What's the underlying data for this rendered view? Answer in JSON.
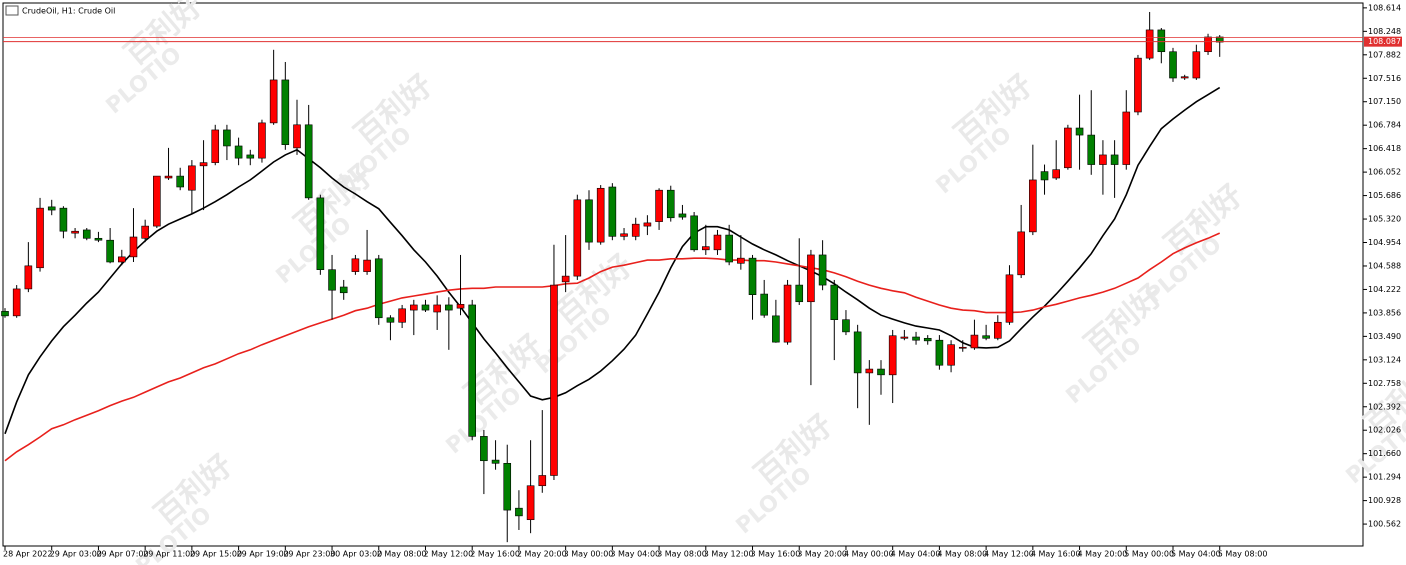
{
  "chart_data": {
    "type": "candlestick",
    "title": "CrudeOil, H1:  Crude Oil",
    "categories": [
      "28 Apr 2022",
      null,
      null,
      null,
      "29 Apr 03:00",
      null,
      null,
      null,
      "29 Apr 07:00",
      null,
      null,
      null,
      "29 Apr 11:00",
      null,
      null,
      null,
      "29 Apr 15:00",
      null,
      null,
      null,
      "29 Apr 19:00",
      null,
      null,
      null,
      "29 Apr 23:00",
      null,
      null,
      null,
      "30 Apr 03:00",
      null,
      null,
      null,
      "2 May 08:00",
      null,
      null,
      null,
      "2 May 12:00",
      null,
      null,
      null,
      "2 May 16:00",
      null,
      null,
      null,
      "2 May 20:00",
      null,
      null,
      null,
      "3 May 00:00",
      null,
      null,
      null,
      "3 May 04:00",
      null,
      null,
      null,
      "3 May 08:00",
      null,
      null,
      null,
      "3 May 12:00",
      null,
      null,
      null,
      "3 May 16:00",
      null,
      null,
      null,
      "3 May 20:00",
      null,
      null,
      null,
      "4 May 00:00",
      null,
      null,
      null,
      "4 May 04:00",
      null,
      null,
      null,
      "4 May 08:00",
      null,
      null,
      null,
      "4 May 12:00",
      null,
      null,
      null,
      "4 May 16:00",
      null,
      null,
      null,
      "4 May 20:00",
      null,
      null,
      null,
      "5 May 00:00",
      null,
      null,
      null,
      "5 May 04:00",
      null,
      null,
      null,
      "5 May 08:00"
    ],
    "open": [
      103.88,
      103.81,
      104.23,
      104.56,
      105.51,
      105.49,
      105.1,
      105.15,
      105.02,
      104.99,
      104.65,
      104.73,
      105.02,
      105.21,
      105.96,
      105.99,
      105.77,
      106.15,
      106.2,
      106.71,
      106.46,
      106.32,
      106.27,
      106.82,
      107.49,
      106.43,
      106.79,
      105.65,
      104.53,
      104.26,
      104.5,
      104.5,
      104.7,
      103.78,
      103.71,
      103.9,
      103.98,
      103.87,
      103.98,
      103.93,
      103.98,
      101.93,
      101.56,
      101.51,
      100.81,
      100.63,
      101.16,
      101.32,
      104.34,
      104.43,
      105.62,
      104.96,
      105.82,
      105.05,
      105.05,
      105.21,
      105.28,
      105.77,
      105.4,
      105.37,
      104.84,
      104.84,
      105.07,
      104.63,
      104.71,
      104.15,
      103.81,
      103.4,
      104.29,
      104.03,
      104.76,
      104.29,
      103.75,
      103.56,
      102.92,
      102.98,
      102.89,
      103.46,
      103.48,
      103.46,
      103.43,
      103.04,
      103.31,
      103.31,
      103.5,
      103.46,
      103.71,
      104.45,
      105.12,
      106.06,
      105.96,
      106.12,
      106.74,
      106.63,
      106.17,
      106.32,
      106.17,
      106.99,
      107.83,
      108.27,
      107.93,
      107.52,
      107.52,
      107.93,
      108.16
    ],
    "high": [
      103.93,
      104.29,
      104.96,
      105.65,
      105.62,
      105.52,
      105.18,
      105.18,
      105.12,
      105.18,
      104.84,
      105.49,
      105.31,
      105.99,
      106.43,
      106.12,
      106.24,
      106.55,
      106.79,
      106.79,
      106.59,
      106.4,
      106.87,
      107.96,
      107.77,
      107.18,
      107.1,
      105.7,
      104.76,
      104.37,
      104.76,
      105.15,
      104.76,
      103.82,
      103.98,
      104.06,
      104.06,
      104.13,
      104.1,
      104.76,
      104.06,
      102.03,
      101.87,
      101.8,
      101.09,
      101.87,
      102.34,
      104.92,
      105.07,
      105.7,
      105.77,
      105.85,
      105.88,
      105.18,
      105.34,
      105.38,
      105.8,
      105.84,
      105.54,
      105.43,
      105.23,
      105.15,
      105.23,
      105.07,
      104.76,
      104.37,
      104.06,
      104.37,
      105.02,
      104.84,
      104.99,
      104.37,
      103.9,
      103.67,
      103.12,
      103.12,
      103.59,
      103.59,
      103.56,
      103.51,
      103.51,
      103.43,
      103.43,
      103.75,
      103.67,
      103.82,
      104.6,
      105.54,
      106.48,
      106.17,
      106.55,
      106.79,
      107.26,
      107.33,
      106.55,
      106.55,
      107.33,
      107.88,
      108.55,
      108.3,
      107.99,
      107.57,
      108.04,
      108.21,
      108.19
    ],
    "low": [
      103.78,
      103.78,
      104.18,
      104.5,
      105.38,
      105.02,
      105.02,
      104.99,
      104.96,
      104.63,
      104.6,
      104.65,
      104.96,
      105.18,
      105.93,
      105.77,
      105.4,
      105.46,
      106.16,
      106.24,
      106.16,
      106.16,
      106.2,
      106.79,
      106.4,
      106.32,
      105.62,
      104.45,
      103.75,
      104.06,
      104.45,
      104.45,
      103.67,
      103.43,
      103.62,
      103.51,
      103.87,
      103.59,
      103.28,
      103.82,
      101.87,
      101.03,
      101.41,
      100.28,
      100.47,
      100.42,
      101.05,
      101.25,
      104.18,
      104.37,
      104.84,
      104.92,
      104.99,
      104.99,
      104.99,
      105.07,
      105.15,
      105.28,
      105.31,
      104.81,
      104.76,
      104.76,
      104.6,
      104.53,
      103.75,
      103.78,
      103.39,
      103.36,
      103.98,
      102.73,
      104.21,
      103.12,
      103.51,
      102.37,
      102.11,
      102.58,
      102.45,
      103.43,
      103.36,
      103.36,
      102.97,
      102.93,
      103.25,
      103.28,
      103.43,
      103.43,
      103.67,
      104.4,
      105.07,
      105.7,
      105.93,
      106.09,
      106.09,
      106.01,
      105.7,
      105.65,
      106.09,
      106.94,
      107.8,
      107.75,
      107.46,
      107.49,
      107.49,
      107.88,
      107.85
    ],
    "close": [
      103.81,
      104.23,
      104.59,
      105.49,
      105.46,
      105.13,
      105.13,
      105.02,
      104.99,
      104.65,
      104.73,
      105.04,
      105.21,
      105.99,
      105.99,
      105.82,
      106.15,
      106.2,
      106.71,
      106.46,
      106.27,
      106.27,
      106.82,
      107.49,
      106.48,
      106.79,
      105.65,
      104.53,
      104.21,
      104.17,
      104.7,
      104.68,
      103.78,
      103.71,
      103.92,
      103.98,
      103.9,
      103.98,
      103.9,
      103.99,
      101.93,
      101.55,
      101.51,
      100.78,
      100.69,
      101.16,
      101.32,
      104.29,
      104.43,
      105.62,
      104.96,
      105.8,
      105.05,
      105.09,
      105.24,
      105.26,
      105.77,
      105.34,
      105.35,
      104.84,
      104.89,
      105.07,
      104.65,
      104.71,
      104.14,
      103.82,
      103.4,
      104.29,
      104.03,
      104.76,
      104.29,
      103.75,
      103.56,
      102.92,
      102.98,
      102.89,
      103.5,
      103.48,
      103.43,
      103.42,
      103.04,
      103.36,
      103.32,
      103.51,
      103.46,
      103.71,
      104.45,
      105.12,
      105.93,
      105.93,
      106.09,
      106.74,
      106.63,
      106.17,
      106.32,
      106.17,
      106.99,
      107.83,
      108.27,
      107.93,
      107.52,
      107.54,
      107.93,
      108.16,
      108.08
    ],
    "up_color": "#ff0000",
    "down_color": "#008000",
    "overlays": [
      {
        "color": "#000000",
        "values": [
          101.97,
          102.47,
          102.89,
          103.17,
          103.42,
          103.64,
          103.82,
          104.01,
          104.18,
          104.4,
          104.62,
          104.81,
          104.98,
          105.13,
          105.24,
          105.32,
          105.4,
          105.49,
          105.59,
          105.7,
          105.82,
          105.93,
          106.07,
          106.21,
          106.32,
          106.4,
          106.26,
          106.12,
          105.96,
          105.82,
          105.71,
          105.59,
          105.48,
          105.27,
          105.06,
          104.84,
          104.65,
          104.43,
          104.18,
          103.95,
          103.7,
          103.45,
          103.23,
          103.0,
          102.78,
          102.56,
          102.5,
          102.54,
          102.61,
          102.72,
          102.82,
          102.95,
          103.11,
          103.29,
          103.51,
          103.84,
          104.18,
          104.56,
          104.89,
          105.1,
          105.2,
          105.2,
          105.15,
          105.04,
          104.93,
          104.84,
          104.76,
          104.67,
          104.59,
          104.51,
          104.42,
          104.31,
          104.18,
          104.06,
          103.93,
          103.82,
          103.76,
          103.7,
          103.65,
          103.62,
          103.59,
          103.5,
          103.39,
          103.32,
          103.31,
          103.32,
          103.42,
          103.61,
          103.79,
          103.96,
          104.15,
          104.35,
          104.56,
          104.78,
          105.06,
          105.32,
          105.7,
          106.16,
          106.45,
          106.73,
          106.88,
          107.02,
          107.15,
          107.26,
          107.37
        ]
      },
      {
        "color": "#e8201c",
        "values": [
          101.55,
          101.69,
          101.8,
          101.92,
          102.05,
          102.11,
          102.19,
          102.26,
          102.33,
          102.41,
          102.48,
          102.54,
          102.62,
          102.7,
          102.78,
          102.84,
          102.92,
          103.0,
          103.06,
          103.14,
          103.22,
          103.28,
          103.36,
          103.43,
          103.5,
          103.57,
          103.64,
          103.7,
          103.76,
          103.82,
          103.89,
          103.93,
          103.99,
          104.04,
          104.09,
          104.12,
          104.15,
          104.18,
          104.21,
          104.23,
          104.24,
          104.24,
          104.26,
          104.26,
          104.26,
          104.26,
          104.26,
          104.28,
          104.31,
          104.32,
          104.4,
          104.5,
          104.57,
          104.6,
          104.64,
          104.68,
          104.68,
          104.7,
          104.7,
          104.71,
          104.71,
          104.7,
          104.68,
          104.68,
          104.67,
          104.67,
          104.65,
          104.62,
          104.59,
          104.56,
          104.53,
          104.48,
          104.42,
          104.35,
          104.29,
          104.24,
          104.2,
          104.17,
          104.1,
          104.04,
          103.98,
          103.93,
          103.9,
          103.89,
          103.86,
          103.86,
          103.86,
          103.87,
          103.9,
          103.95,
          103.99,
          104.04,
          104.09,
          104.13,
          104.18,
          104.24,
          104.32,
          104.4,
          104.53,
          104.65,
          104.78,
          104.87,
          104.95,
          105.02,
          105.1
        ]
      }
    ],
    "current_price": 108.087,
    "current_price_color": "#e03030",
    "ylim": [
      100.22,
      108.69
    ],
    "yticks": [
      108.614,
      108.248,
      107.882,
      107.516,
      {
        "value": 107.15,
        "label": "107.150"
      },
      106.784,
      106.418,
      106.052,
      105.686,
      {
        "value": 105.32,
        "label": "105.320"
      },
      104.954,
      104.588,
      104.222,
      103.856,
      {
        "value": 103.49,
        "label": "103.490"
      },
      103.124,
      102.758,
      102.392,
      102.026,
      {
        "value": 101.66,
        "label": "101.660"
      },
      101.294,
      100.928,
      100.562
    ]
  },
  "watermark": {
    "brand": "百利好",
    "logo": "PLOTIO"
  }
}
